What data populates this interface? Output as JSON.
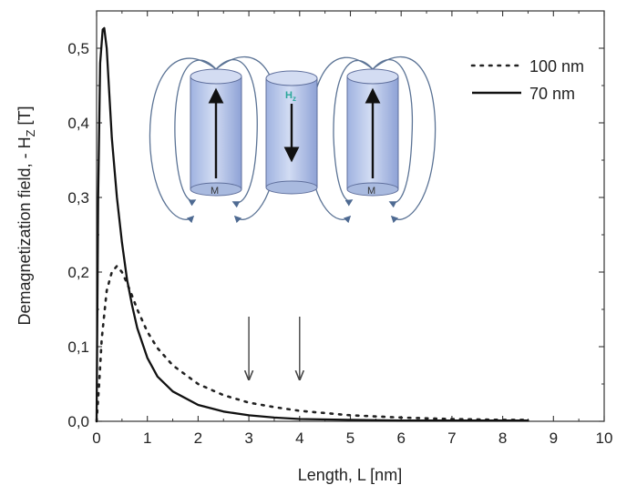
{
  "chart_data": {
    "type": "line",
    "xlabel": "Length, L [nm]",
    "ylabel_parts": [
      "Demagnetization field, - H",
      "Z",
      "  [T]"
    ],
    "xlim": [
      0,
      10
    ],
    "ylim": [
      0,
      0.55
    ],
    "xticks": [
      "0",
      "1",
      "2",
      "3",
      "4",
      "5",
      "6",
      "7",
      "8",
      "9",
      "10"
    ],
    "yticks": [
      "0,0",
      "0,1",
      "0,2",
      "0,3",
      "0,4",
      "0,5"
    ],
    "ytick_values": [
      0,
      0.1,
      0.2,
      0.3,
      0.4,
      0.5
    ],
    "legend_position": "top-right",
    "series": [
      {
        "name": "100 nm",
        "style": "dotted",
        "color": "#222222",
        "x": [
          0,
          0.05,
          0.1,
          0.2,
          0.3,
          0.4,
          0.5,
          0.6,
          0.7,
          0.8,
          1.0,
          1.2,
          1.5,
          2.0,
          2.5,
          3.0,
          3.5,
          4.0,
          5.0,
          6.0,
          7.0,
          8.0,
          8.5
        ],
        "y": [
          0.0,
          0.05,
          0.11,
          0.175,
          0.2,
          0.208,
          0.2,
          0.185,
          0.168,
          0.15,
          0.12,
          0.098,
          0.075,
          0.05,
          0.035,
          0.025,
          0.019,
          0.014,
          0.008,
          0.005,
          0.003,
          0.002,
          0.002
        ]
      },
      {
        "name": "70 nm",
        "style": "solid",
        "color": "#111111",
        "x": [
          0,
          0.03,
          0.07,
          0.12,
          0.15,
          0.2,
          0.25,
          0.3,
          0.4,
          0.5,
          0.6,
          0.7,
          0.8,
          1.0,
          1.2,
          1.5,
          2.0,
          2.5,
          3.0,
          3.5,
          4.0,
          5.0,
          6.0,
          7.0,
          8.0,
          8.5
        ],
        "y": [
          0.0,
          0.3,
          0.48,
          0.525,
          0.527,
          0.5,
          0.44,
          0.38,
          0.3,
          0.24,
          0.19,
          0.155,
          0.125,
          0.085,
          0.06,
          0.04,
          0.022,
          0.013,
          0.008,
          0.005,
          0.003,
          0.002,
          0.001,
          0.001,
          0.001,
          0.001
        ]
      }
    ],
    "annotations": {
      "arrows_at_x": [
        3,
        4
      ],
      "inset_labels": {
        "left_cylinder": "M",
        "center_cylinder": "H",
        "center_cylinder_sub": "z",
        "right_cylinder": "M"
      }
    }
  },
  "colors": {
    "inset_cylinder_fill": "#b9c8ea",
    "inset_cylinder_stroke": "#5f6f9c",
    "inset_field_line": "#5b7395",
    "hz_label": "#2aa79b"
  }
}
